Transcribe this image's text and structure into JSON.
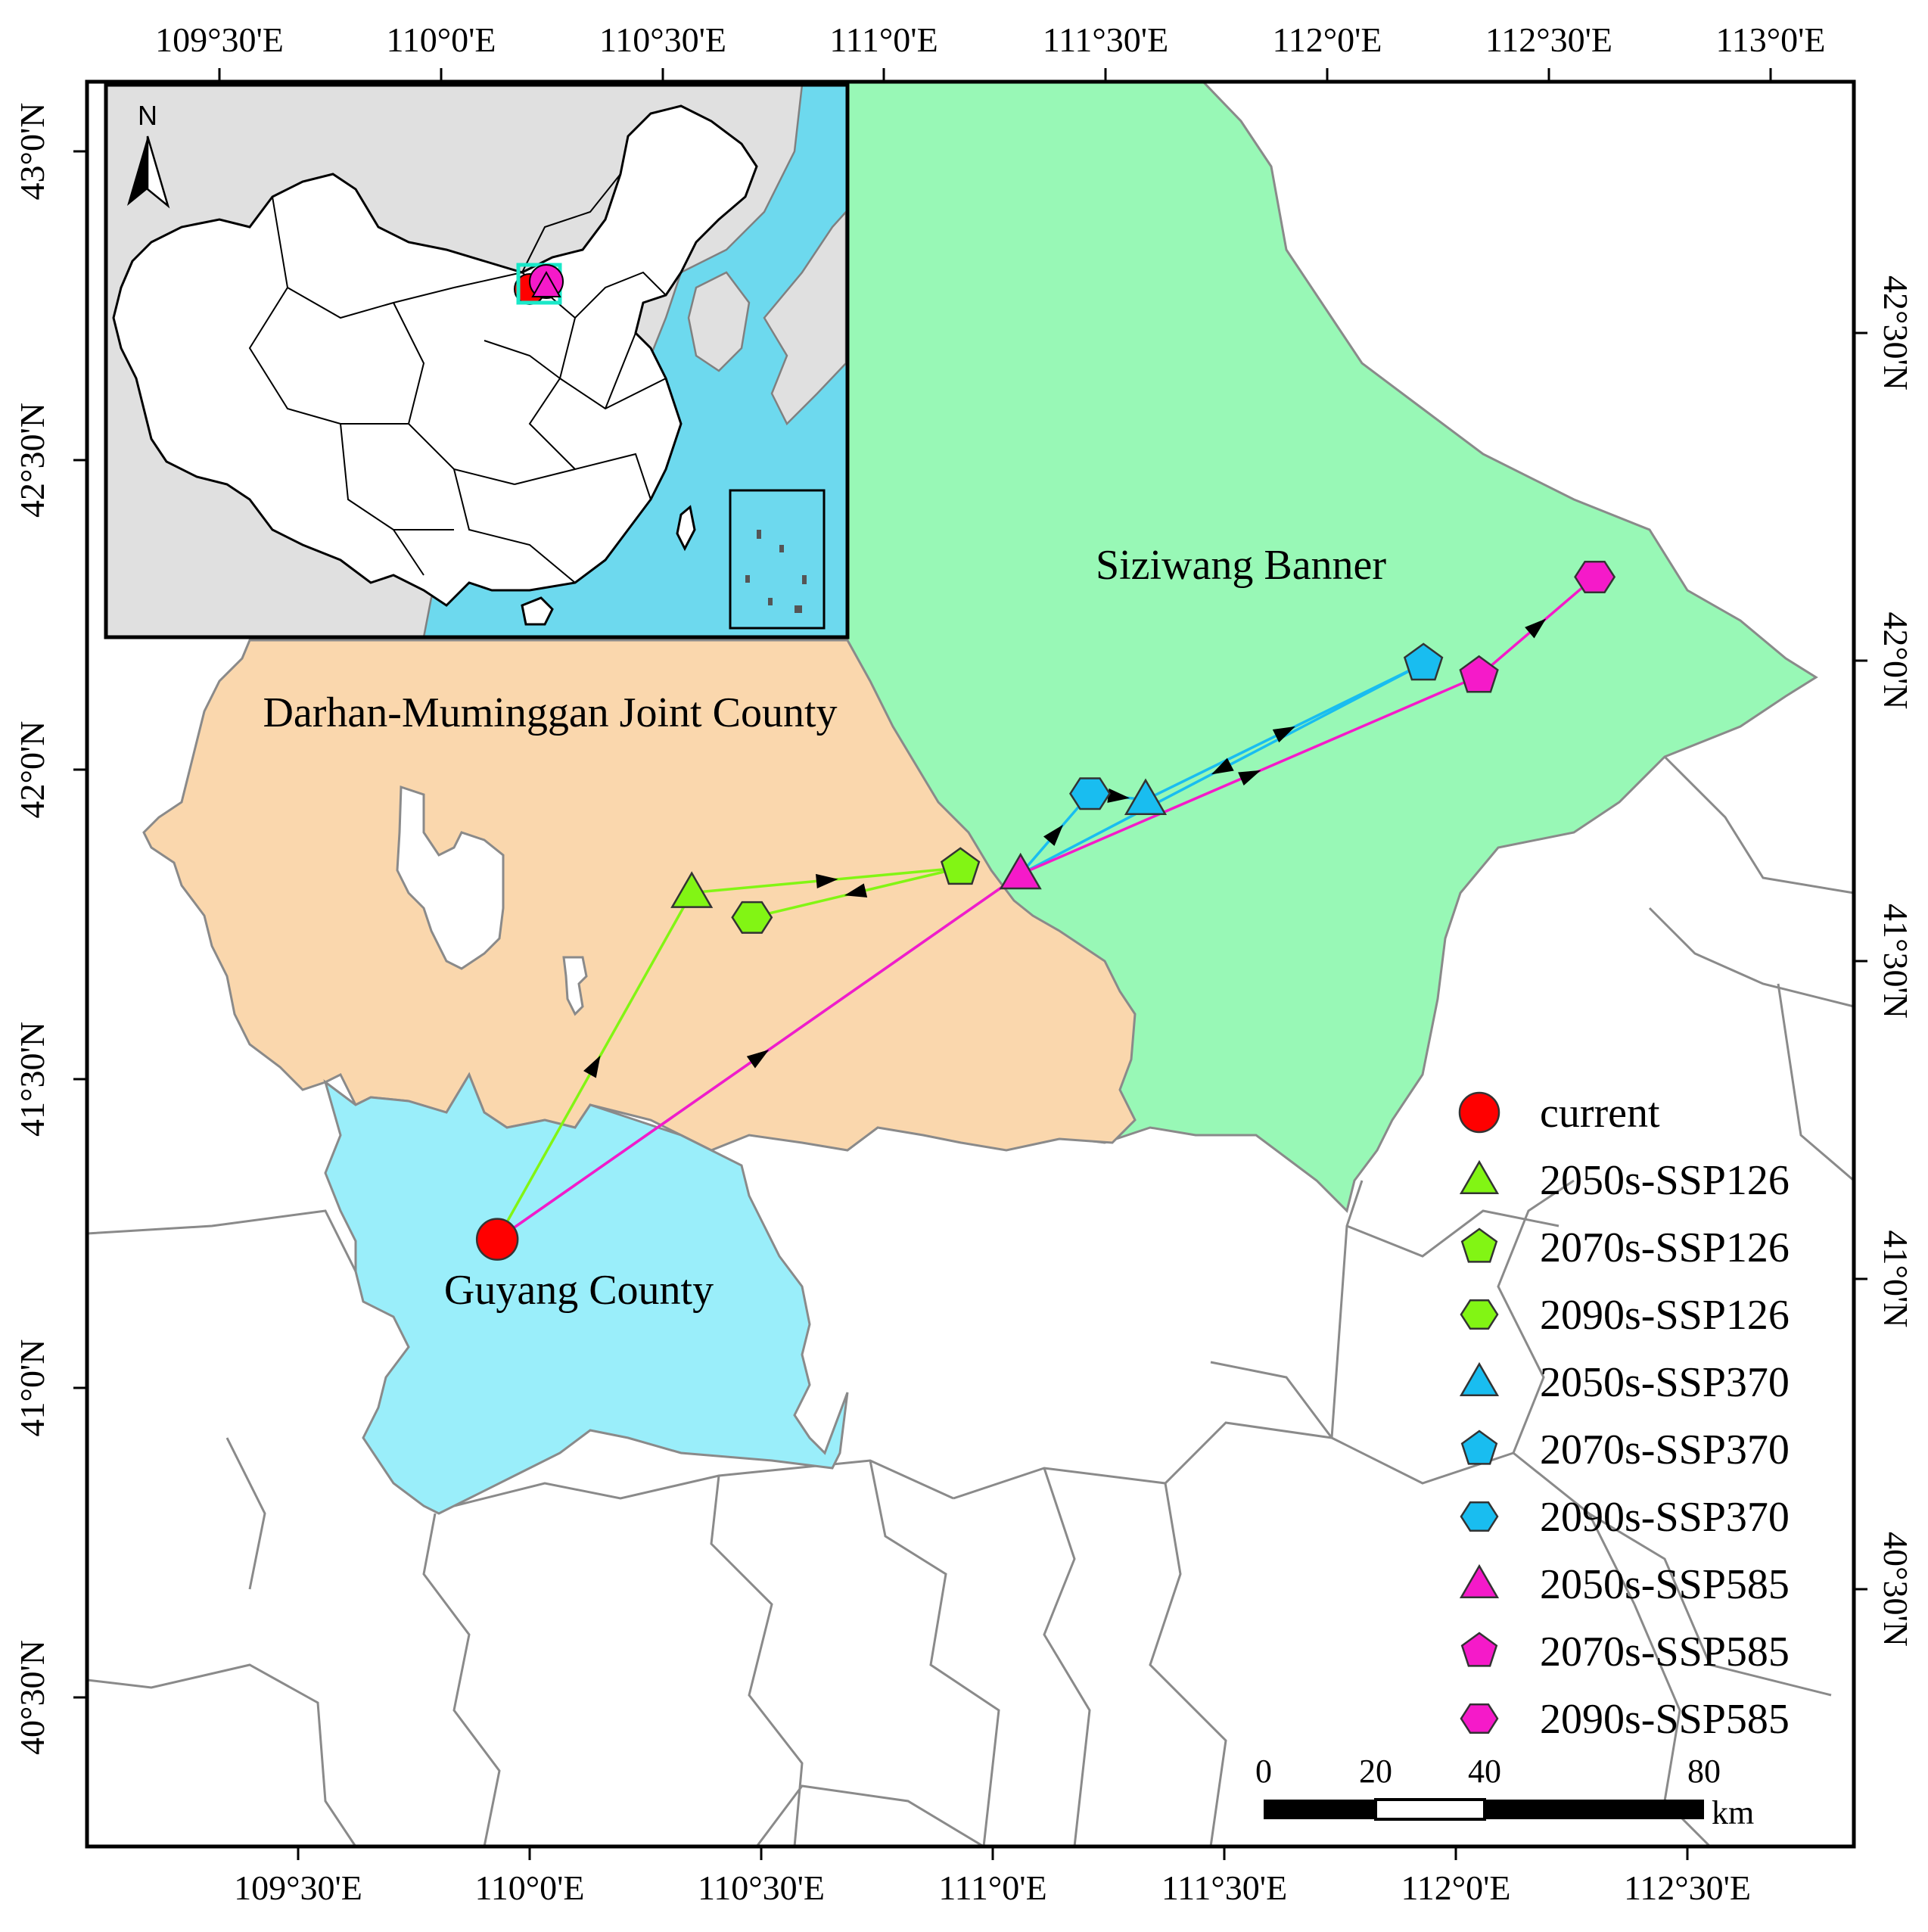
{
  "colors": {
    "siziwang": "#98f8b6",
    "darhan": "#fad7ad",
    "guyang": "#9aeefa",
    "ocean": "#6dd9ee",
    "land_grey": "#e0e0e0",
    "ssp126": "#82f514",
    "ssp370": "#19bdf0",
    "ssp585": "#f51ac9",
    "current": "#ff0000"
  },
  "axes": {
    "top_lon": [
      "109°30'E",
      "110°0'E",
      "110°30'E",
      "111°0'E",
      "111°30'E",
      "112°0'E",
      "112°30'E",
      "113°0'E"
    ],
    "bottom_lon": [
      "109°30'E",
      "110°0'E",
      "110°30'E",
      "111°0'E",
      "111°30'E",
      "112°0'E",
      "112°30'E"
    ],
    "left_lat": [
      "43°0'N",
      "42°30'N",
      "42°0'N",
      "41°30'N",
      "41°0'N",
      "40°30'N"
    ],
    "right_lat": [
      "42°30'N",
      "42°0'N",
      "41°30'N",
      "41°0'N",
      "40°30'N"
    ]
  },
  "regions": {
    "siziwang": "Siziwang Banner",
    "darhan": "Darhan-Muminggan Joint County",
    "guyang": "Guyang County"
  },
  "centroids": [
    {
      "name": "current",
      "shape": "circle",
      "series": "current",
      "lon": 109.93,
      "lat": 41.24
    },
    {
      "name": "2050s-SSP126",
      "shape": "triangle",
      "series": "ssp126",
      "lon": 110.35,
      "lat": 41.8
    },
    {
      "name": "2070s-SSP126",
      "shape": "pentagon",
      "series": "ssp126",
      "lon": 110.93,
      "lat": 41.84
    },
    {
      "name": "2090s-SSP126",
      "shape": "hexagon",
      "series": "ssp126",
      "lon": 110.48,
      "lat": 41.76
    },
    {
      "name": "2050s-SSP370",
      "shape": "triangle",
      "series": "ssp370",
      "lon": 111.33,
      "lat": 41.95
    },
    {
      "name": "2070s-SSP370",
      "shape": "pentagon",
      "series": "ssp370",
      "lon": 111.93,
      "lat": 42.17
    },
    {
      "name": "2090s-SSP370",
      "shape": "hexagon",
      "series": "ssp370",
      "lon": 111.21,
      "lat": 41.96
    },
    {
      "name": "2050s-SSP585",
      "shape": "triangle",
      "series": "ssp585",
      "lon": 111.06,
      "lat": 41.83
    },
    {
      "name": "2070s-SSP585",
      "shape": "pentagon",
      "series": "ssp585",
      "lon": 112.05,
      "lat": 42.15
    },
    {
      "name": "2090s-SSP585",
      "shape": "hexagon",
      "series": "ssp585",
      "lon": 112.3,
      "lat": 42.31
    }
  ],
  "legend": [
    {
      "label": "current",
      "shape": "circle",
      "series": "current"
    },
    {
      "label": "2050s-SSP126",
      "shape": "triangle",
      "series": "ssp126"
    },
    {
      "label": "2070s-SSP126",
      "shape": "pentagon",
      "series": "ssp126"
    },
    {
      "label": "2090s-SSP126",
      "shape": "hexagon",
      "series": "ssp126"
    },
    {
      "label": "2050s-SSP370",
      "shape": "triangle",
      "series": "ssp370"
    },
    {
      "label": "2070s-SSP370",
      "shape": "pentagon",
      "series": "ssp370"
    },
    {
      "label": "2090s-SSP370",
      "shape": "hexagon",
      "series": "ssp370"
    },
    {
      "label": "2050s-SSP585",
      "shape": "triangle",
      "series": "ssp585"
    },
    {
      "label": "2070s-SSP585",
      "shape": "pentagon",
      "series": "ssp585"
    },
    {
      "label": "2090s-SSP585",
      "shape": "hexagon",
      "series": "ssp585"
    }
  ],
  "scale_bar": {
    "labels": [
      "0",
      "20",
      "40",
      "80"
    ],
    "unit": "km"
  },
  "inset": {
    "north": "N"
  }
}
